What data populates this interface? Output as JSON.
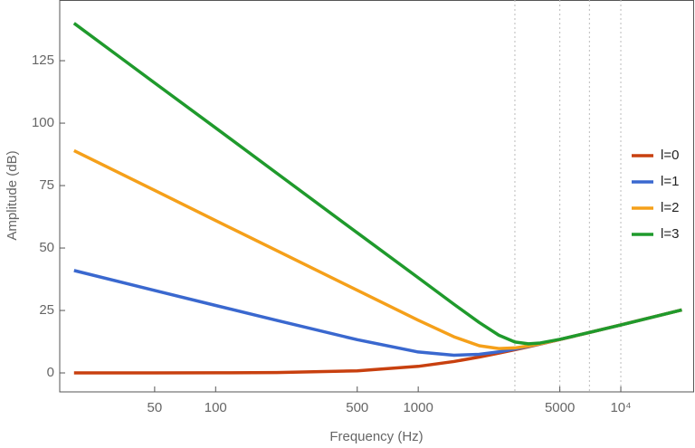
{
  "chart_data": {
    "type": "line",
    "x_label": "Frequency (Hz)",
    "y_label": "Amplitude (dB)",
    "x": [
      20,
      50,
      100,
      200,
      500,
      1000,
      1500,
      2000,
      2500,
      3000,
      3500,
      4000,
      5000,
      7000,
      10000,
      20000
    ],
    "series": [
      {
        "name": "l=0",
        "color": "#c8400f",
        "values": [
          0.0,
          0.01,
          0.04,
          0.14,
          0.82,
          2.62,
          4.56,
          6.34,
          7.9,
          9.26,
          10.46,
          11.53,
          13.36,
          16.18,
          19.22,
          25.21
        ]
      },
      {
        "name": "l=1",
        "color": "#3a68cf",
        "values": [
          41.0,
          33.0,
          27.0,
          21.04,
          13.3,
          8.37,
          7.08,
          7.46,
          8.43,
          9.54,
          10.62,
          11.62,
          13.4,
          16.2,
          19.2,
          25.2
        ]
      },
      {
        "name": "l=2",
        "color": "#f5a01a",
        "values": [
          89.0,
          73.1,
          61.0,
          49.0,
          33.1,
          21.1,
          14.47,
          10.88,
          9.74,
          10.0,
          10.78,
          11.68,
          13.4,
          16.2,
          19.2,
          25.2
        ]
      },
      {
        "name": "l=3",
        "color": "#1f9a2c",
        "values": [
          140.0,
          116.1,
          98.1,
          80.0,
          56.1,
          38.1,
          27.5,
          20.18,
          15.1,
          12.36,
          11.64,
          11.98,
          13.44,
          16.2,
          19.2,
          25.2
        ]
      }
    ],
    "xlim": [
      17,
      23000
    ],
    "xlog": true,
    "xticks": [
      50,
      100,
      500,
      1000,
      5000,
      {
        "value": 10000,
        "label": "10⁴"
      }
    ],
    "xgrid": [
      3000,
      5000,
      7000,
      10000
    ],
    "ylim": [
      -7.6,
      149.3
    ],
    "yticks": [
      0,
      25,
      50,
      75,
      100,
      125
    ],
    "legend_position": "right"
  }
}
